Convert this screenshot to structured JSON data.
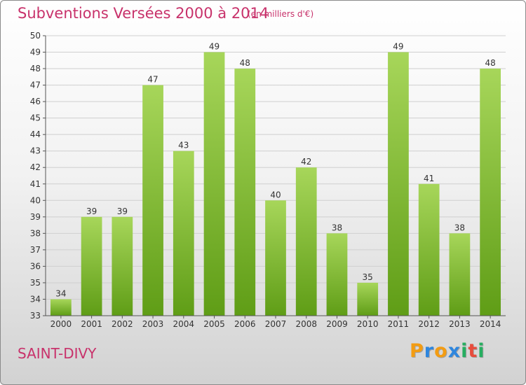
{
  "header": {
    "title": "Subventions Versées 2000 à 2014",
    "unit_note": "(en milliers d'€)"
  },
  "footer": {
    "place_name": "SAINT-DIVY",
    "logo_text": "Proxiti",
    "logo_colors": [
      "#f39c12",
      "#2e86de",
      "#f39c12",
      "#2e86de",
      "#27ae60",
      "#e74c3c",
      "#27ae60"
    ]
  },
  "colors": {
    "bar_light": "#a7d65a",
    "bar_dark": "#5f9d16",
    "grid": "#cfcfcf",
    "accent_text": "#c8326b"
  },
  "chart_data": {
    "type": "bar",
    "title": "Subventions Versées 2000 à 2014",
    "subtitle": "(en milliers d'€)",
    "xlabel": "",
    "ylabel": "",
    "ylim": [
      33,
      50
    ],
    "ytick_step": 1,
    "grid": true,
    "categories": [
      "2000",
      "2001",
      "2002",
      "2003",
      "2004",
      "2005",
      "2006",
      "2007",
      "2008",
      "2009",
      "2010",
      "2011",
      "2012",
      "2013",
      "2014"
    ],
    "values": [
      34,
      39,
      39,
      47,
      43,
      49,
      48,
      40,
      42,
      38,
      35,
      49,
      41,
      38,
      48
    ]
  }
}
